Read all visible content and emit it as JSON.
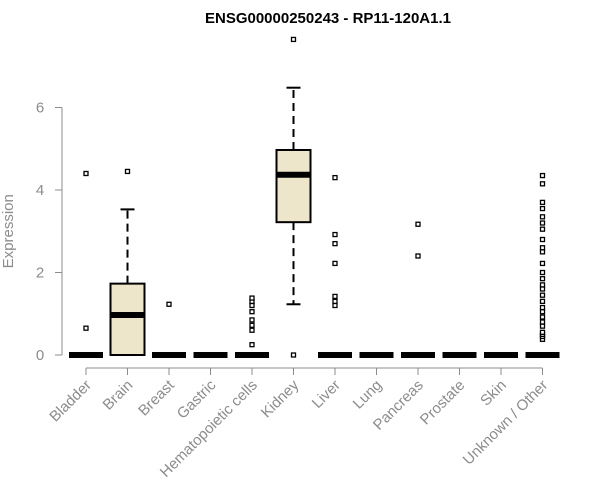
{
  "chart_data": {
    "type": "box",
    "title": "ENSG00000250243 - RP11-120A1.1",
    "xlabel": "",
    "ylabel": "Expression",
    "ylim": [
      0,
      7.6
    ],
    "yticks": [
      0,
      2,
      4,
      6
    ],
    "colors": {
      "box_fill": "#ede6cb",
      "stroke": "#000000",
      "axis": "#8c8c8c"
    },
    "categories": [
      "Bladder",
      "Brain",
      "Breast",
      "Gastric",
      "Hematopoietic cells",
      "Kidney",
      "Liver",
      "Lung",
      "Pancreas",
      "Prostate",
      "Skin",
      "Unknown / Other"
    ],
    "boxes": [
      {
        "category": "Bladder",
        "min": 0,
        "q1": 0,
        "median": 0,
        "q3": 0,
        "max": 0,
        "outliers": [
          0.65,
          4.4
        ]
      },
      {
        "category": "Brain",
        "min": 0,
        "q1": 0,
        "median": 0.97,
        "q3": 1.73,
        "max": 3.53,
        "outliers": [
          4.45
        ]
      },
      {
        "category": "Breast",
        "min": 0,
        "q1": 0,
        "median": 0,
        "q3": 0,
        "max": 0,
        "outliers": [
          1.23
        ]
      },
      {
        "category": "Gastric",
        "min": 0,
        "q1": 0,
        "median": 0,
        "q3": 0,
        "max": 0,
        "outliers": []
      },
      {
        "category": "Hematopoietic cells",
        "min": 0,
        "q1": 0,
        "median": 0,
        "q3": 0,
        "max": 0,
        "outliers": [
          0.25,
          0.6,
          0.72,
          0.85,
          1.05,
          1.2,
          1.3,
          1.38
        ]
      },
      {
        "category": "Kidney",
        "min": 1.23,
        "q1": 3.22,
        "median": 4.37,
        "q3": 4.97,
        "max": 6.48,
        "outliers": [
          0,
          7.65
        ]
      },
      {
        "category": "Liver",
        "min": 0,
        "q1": 0,
        "median": 0,
        "q3": 0,
        "max": 0,
        "outliers": [
          1.2,
          1.3,
          1.42,
          2.22,
          2.7,
          2.92,
          4.3
        ]
      },
      {
        "category": "Lung",
        "min": 0,
        "q1": 0,
        "median": 0,
        "q3": 0,
        "max": 0,
        "outliers": []
      },
      {
        "category": "Pancreas",
        "min": 0,
        "q1": 0,
        "median": 0,
        "q3": 0,
        "max": 0,
        "outliers": [
          2.4,
          3.17
        ]
      },
      {
        "category": "Prostate",
        "min": 0,
        "q1": 0,
        "median": 0,
        "q3": 0,
        "max": 0,
        "outliers": []
      },
      {
        "category": "Skin",
        "min": 0,
        "q1": 0,
        "median": 0,
        "q3": 0,
        "max": 0,
        "outliers": []
      },
      {
        "category": "Unknown / Other",
        "min": 0,
        "q1": 0,
        "median": 0,
        "q3": 0,
        "max": 0,
        "outliers": [
          0.38,
          0.45,
          0.5,
          0.55,
          0.7,
          0.8,
          0.92,
          1.05,
          1.15,
          1.3,
          1.45,
          1.6,
          1.7,
          1.85,
          2.0,
          2.22,
          2.5,
          2.6,
          2.8,
          3.05,
          3.2,
          3.35,
          3.55,
          3.7,
          4.15,
          4.35
        ]
      }
    ]
  }
}
